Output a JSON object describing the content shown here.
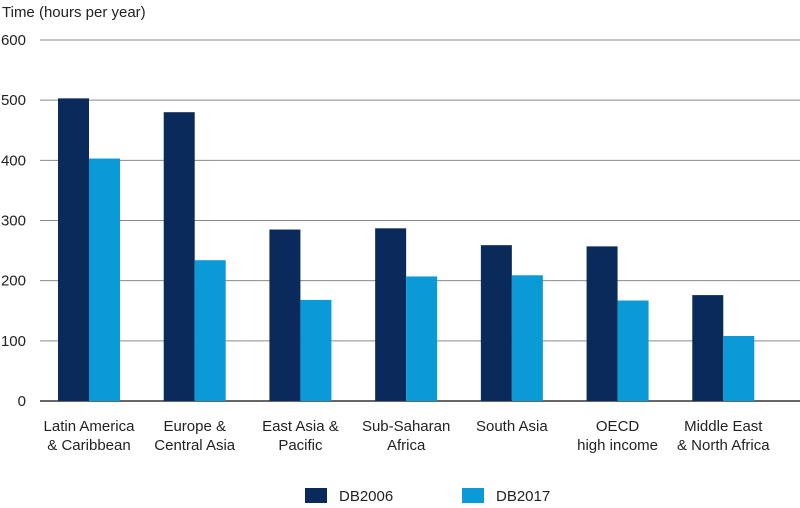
{
  "chart_data": {
    "type": "bar",
    "title": "",
    "xlabel": "",
    "ylabel": "Time (hours per year)",
    "ylim": [
      0,
      600
    ],
    "yticks": [
      0,
      100,
      200,
      300,
      400,
      500,
      600
    ],
    "grid": true,
    "legend_position": "bottom",
    "categories": [
      [
        "Latin America",
        "& Caribbean"
      ],
      [
        "Europe &",
        "Central Asia"
      ],
      [
        "East Asia &",
        "Pacific"
      ],
      [
        "Sub-Saharan",
        "Africa"
      ],
      [
        "South Asia"
      ],
      [
        "OECD",
        "high income"
      ],
      [
        "Middle East",
        "& North Africa"
      ]
    ],
    "series": [
      {
        "name": "DB2006",
        "color": "#0a2a5c",
        "values": [
          503,
          480,
          285,
          287,
          259,
          257,
          176
        ]
      },
      {
        "name": "DB2017",
        "color": "#0a9ad8",
        "values": [
          403,
          234,
          168,
          207,
          209,
          167,
          108
        ]
      }
    ]
  }
}
